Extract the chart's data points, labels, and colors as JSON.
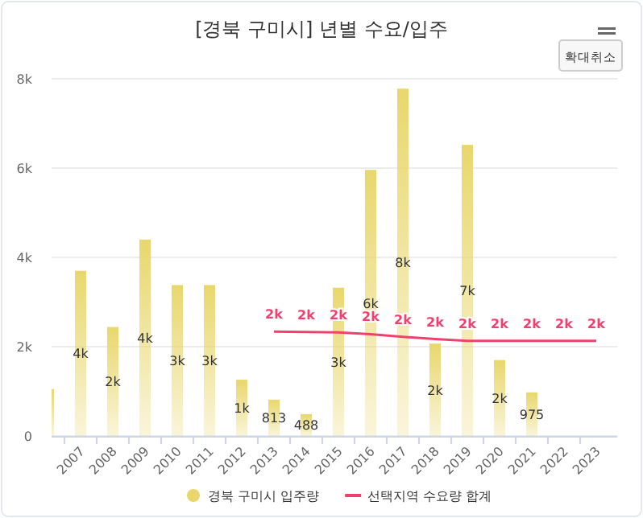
{
  "chart_data": {
    "type": "bar",
    "title": "[경북 구미시] 년별 수요/입주",
    "categories": [
      null,
      "2007",
      "2008",
      "2009",
      "2010",
      "2011",
      "2012",
      "2013",
      "2014",
      "2015",
      "2016",
      "2017",
      "2018",
      "2019",
      "2020",
      "2021",
      "2022",
      "2023"
    ],
    "series": [
      {
        "name": "경북 구미시 입주량",
        "color": "#e9d76c",
        "values": [
          1050,
          3700,
          2440,
          4400,
          3380,
          3380,
          1260,
          813,
          488,
          3320,
          5960,
          7780,
          2070,
          6520,
          1700,
          975,
          null,
          null
        ],
        "value_labels": [
          null,
          "4k",
          "2k",
          "4k",
          "3k",
          "3k",
          "1k",
          "813",
          "488",
          "3k",
          "6k",
          "8k",
          "2k",
          "7k",
          "2k",
          "975",
          null,
          null
        ]
      },
      {
        "name": "선택지역 수요량 합계",
        "type": "line",
        "color": "#f0416e",
        "values": [
          null,
          null,
          null,
          null,
          null,
          null,
          null,
          2340,
          2330,
          2320,
          2280,
          2220,
          2170,
          2130,
          2130,
          2130,
          2130,
          2130
        ],
        "value_labels": [
          null,
          null,
          null,
          null,
          null,
          null,
          null,
          "2k",
          "2k",
          "2k",
          "2k",
          "2k",
          "2k",
          "2k",
          "2k",
          "2k",
          "2k",
          "2k"
        ]
      }
    ],
    "ylim": [
      0,
      8000
    ],
    "yticks": [
      {
        "value": 0,
        "label": "0"
      },
      {
        "value": 2000,
        "label": "2k"
      },
      {
        "value": 4000,
        "label": "4k"
      },
      {
        "value": 6000,
        "label": "6k"
      },
      {
        "value": 8000,
        "label": "8k"
      }
    ],
    "grid": "y",
    "legend": "bottom",
    "annotations": [
      "확대취소"
    ]
  }
}
